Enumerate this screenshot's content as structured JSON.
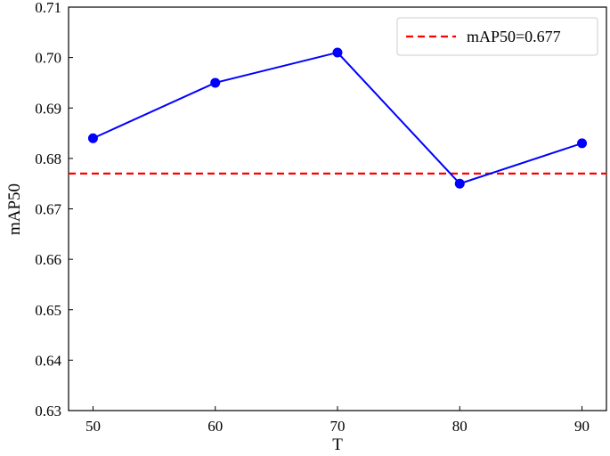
{
  "chart_data": {
    "type": "line",
    "xlabel": "T",
    "ylabel": "mAP50",
    "xlim": [
      48,
      92
    ],
    "ylim": [
      0.63,
      0.71
    ],
    "xticks": [
      "50",
      "60",
      "70",
      "80",
      "90"
    ],
    "yticks": [
      "0.63",
      "0.64",
      "0.65",
      "0.66",
      "0.67",
      "0.68",
      "0.69",
      "0.70",
      "0.71"
    ],
    "grid": false,
    "series": [
      {
        "x": [
          50,
          60,
          70,
          80,
          90
        ],
        "values": [
          0.684,
          0.695,
          0.701,
          0.675,
          0.683
        ],
        "color": "#0000ff",
        "marker": "circle"
      }
    ],
    "reference_line": {
      "y": 0.677,
      "label": "mAP50=0.677",
      "color": "#ff0000",
      "style": "dashed"
    },
    "legend_position": "top-right"
  }
}
